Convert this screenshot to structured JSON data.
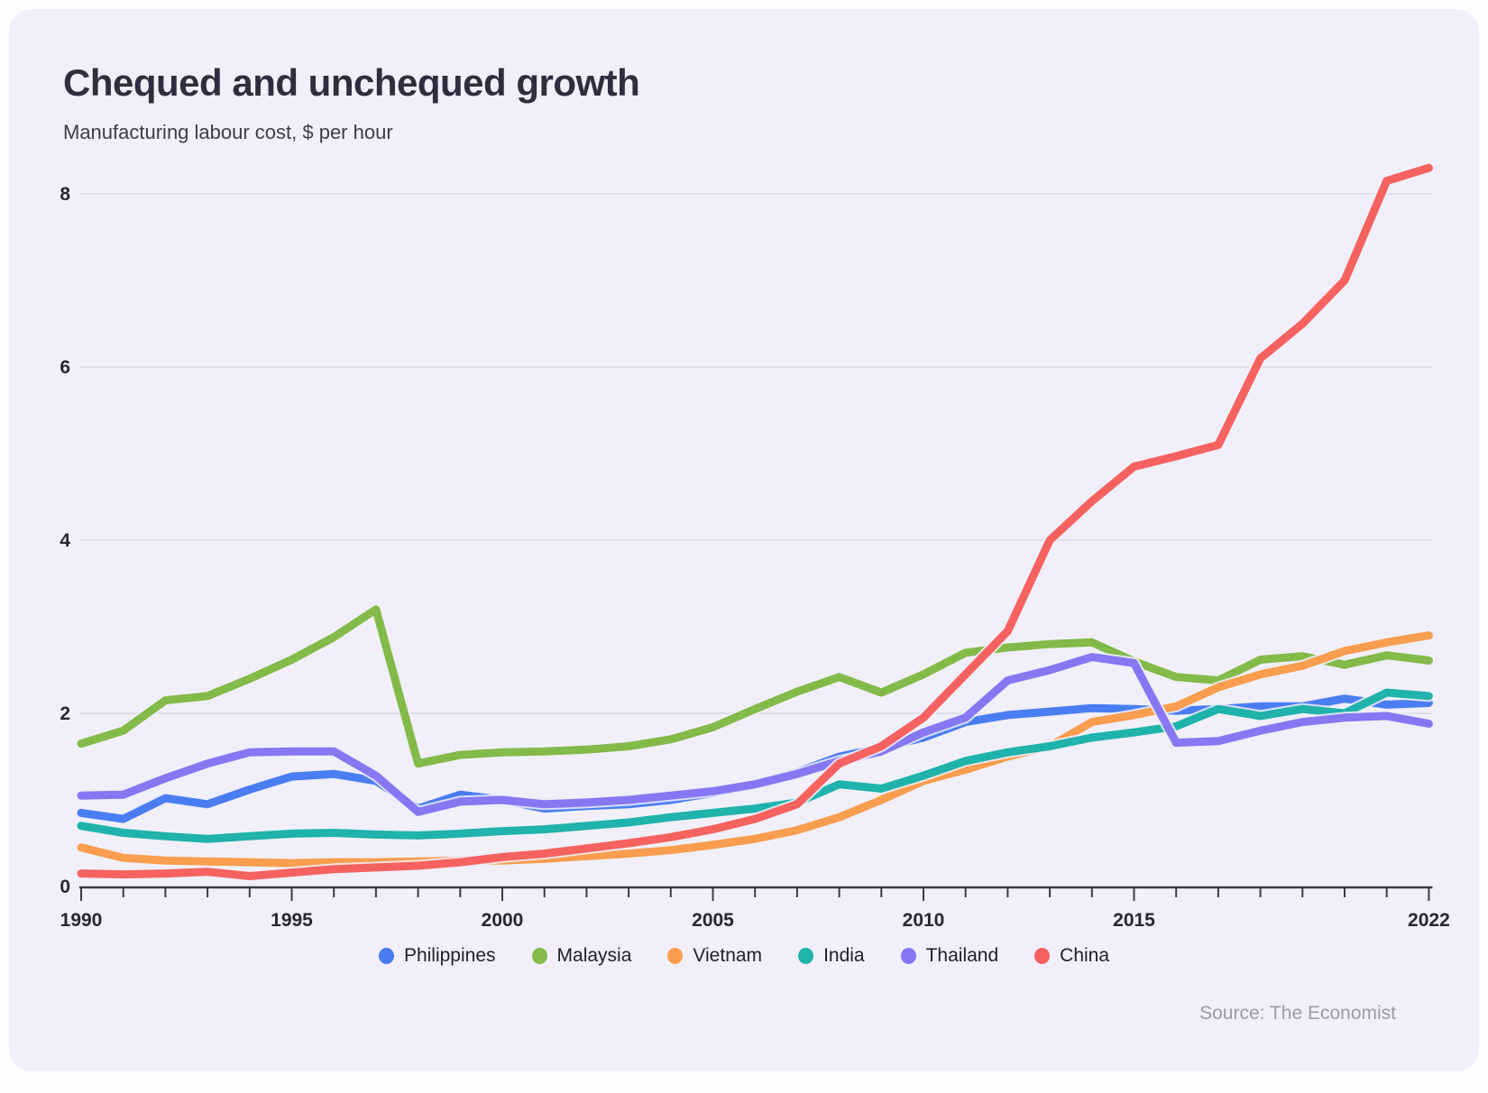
{
  "page": {
    "title": "Chequed and unchequed growth",
    "subtitle": "Manufacturing labour cost, $ per hour",
    "source": "Source: The Economist"
  },
  "colors": {
    "page_background": "#fdfdff",
    "card_background": "#f1f0fa",
    "gridline": "#d8d8e2",
    "axis": "#3c3c49",
    "tick_label": "#27272f",
    "title_text": "#2e2e3e",
    "source_text": "#9b9ba6"
  },
  "chart_data": {
    "type": "line",
    "title": "Chequed and unchequed growth",
    "subtitle": "Manufacturing labour cost, $ per hour",
    "xlabel": "",
    "ylabel": "$ per hour",
    "x_start": 1990,
    "x_end": 2022,
    "x": [
      1990,
      1991,
      1992,
      1993,
      1994,
      1995,
      1996,
      1997,
      1998,
      1999,
      2000,
      2001,
      2002,
      2003,
      2004,
      2005,
      2006,
      2007,
      2008,
      2009,
      2010,
      2011,
      2012,
      2013,
      2014,
      2015,
      2016,
      2017,
      2018,
      2019,
      2020,
      2021,
      2022
    ],
    "x_ticks_labeled": [
      1990,
      1995,
      2000,
      2005,
      2010,
      2015,
      2022
    ],
    "y_ticks": [
      0,
      2,
      4,
      6,
      8
    ],
    "ylim": [
      0,
      8.6
    ],
    "grid": "horizontal",
    "legend_position": "bottom",
    "series": [
      {
        "name": "Philippines",
        "color": "#4a7df2",
        "values": [
          0.85,
          0.78,
          1.02,
          0.95,
          1.12,
          1.27,
          1.3,
          1.22,
          0.9,
          1.06,
          1.0,
          0.9,
          0.93,
          0.95,
          1.0,
          1.08,
          1.18,
          1.32,
          1.5,
          1.6,
          1.72,
          1.9,
          1.98,
          2.02,
          2.06,
          2.05,
          2.03,
          2.05,
          2.08,
          2.08,
          2.17,
          2.1,
          2.12
        ]
      },
      {
        "name": "Malaysia",
        "color": "#83ba49",
        "values": [
          1.65,
          1.8,
          2.15,
          2.2,
          2.4,
          2.62,
          2.88,
          3.2,
          1.42,
          1.52,
          1.55,
          1.56,
          1.58,
          1.62,
          1.7,
          1.84,
          2.05,
          2.25,
          2.42,
          2.24,
          2.45,
          2.7,
          2.76,
          2.8,
          2.82,
          2.6,
          2.42,
          2.38,
          2.62,
          2.66,
          2.56,
          2.67,
          2.61
        ]
      },
      {
        "name": "Vietnam",
        "color": "#f99d4e",
        "values": [
          0.45,
          0.33,
          0.3,
          0.29,
          0.28,
          0.27,
          0.28,
          0.28,
          0.29,
          0.3,
          0.3,
          0.32,
          0.35,
          0.38,
          0.42,
          0.48,
          0.55,
          0.65,
          0.8,
          1.0,
          1.22,
          1.35,
          1.5,
          1.62,
          1.9,
          1.98,
          2.08,
          2.3,
          2.45,
          2.55,
          2.72,
          2.82,
          2.9
        ]
      },
      {
        "name": "India",
        "color": "#1fb3ab",
        "values": [
          0.7,
          0.62,
          0.58,
          0.55,
          0.58,
          0.61,
          0.62,
          0.6,
          0.59,
          0.61,
          0.64,
          0.66,
          0.7,
          0.74,
          0.8,
          0.85,
          0.9,
          0.97,
          1.18,
          1.13,
          1.28,
          1.45,
          1.55,
          1.62,
          1.72,
          1.78,
          1.85,
          2.05,
          1.97,
          2.05,
          2.0,
          2.24,
          2.2
        ]
      },
      {
        "name": "Thailand",
        "color": "#8677f2",
        "values": [
          1.05,
          1.06,
          1.25,
          1.42,
          1.55,
          1.56,
          1.56,
          1.28,
          0.86,
          0.98,
          1.0,
          0.95,
          0.97,
          1.0,
          1.05,
          1.1,
          1.18,
          1.3,
          1.45,
          1.56,
          1.78,
          1.95,
          2.38,
          2.5,
          2.65,
          2.58,
          1.66,
          1.68,
          1.8,
          1.9,
          1.95,
          1.97,
          1.88
        ]
      },
      {
        "name": "China",
        "color": "#f6625f",
        "values": [
          0.15,
          0.14,
          0.15,
          0.17,
          0.12,
          0.16,
          0.2,
          0.22,
          0.24,
          0.28,
          0.34,
          0.38,
          0.44,
          0.5,
          0.57,
          0.66,
          0.78,
          0.95,
          1.42,
          1.62,
          1.95,
          2.45,
          2.95,
          4.0,
          4.45,
          4.85,
          4.97,
          5.1,
          6.1,
          6.5,
          7.0,
          8.15,
          8.3
        ]
      }
    ],
    "source": "Source: The Economist"
  }
}
